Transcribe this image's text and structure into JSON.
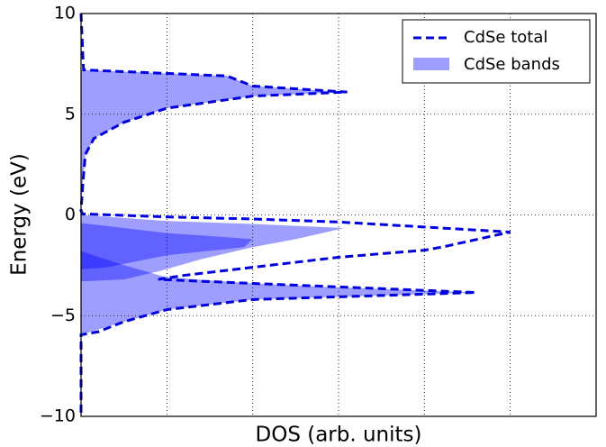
{
  "chart_data": {
    "type": "line",
    "xlabel": "DOS (arb. units)",
    "ylabel": "Energy (eV)",
    "xlim": [
      0,
      6
    ],
    "xticks": [
      0,
      1,
      2,
      3,
      4,
      5,
      6
    ],
    "ylim": [
      -10,
      10
    ],
    "yticks": [
      {
        "value": -10,
        "label": "−10"
      },
      {
        "value": -5,
        "label": "−5"
      },
      0,
      5,
      10
    ],
    "grid": true,
    "legend": "upper right",
    "series": [
      {
        "name": "CdSe total",
        "color": "#0000dd",
        "style": "dashed",
        "x": [
          0,
          0.02,
          0.03,
          1.7,
          2.0,
          3.1,
          2.0,
          1.0,
          0.5,
          0.15,
          0.05,
          0.02,
          0,
          0.02,
          1.0,
          2.0,
          3.0,
          4.0,
          5.0,
          4.2,
          4.0,
          3.0,
          2.0,
          1.2,
          0.9,
          2.0,
          4.6,
          3.5,
          2.0,
          1.0,
          0.5,
          0.2,
          0,
          0
        ],
        "y": [
          10,
          8,
          7.2,
          6.9,
          6.4,
          6.1,
          5.9,
          5.3,
          4.6,
          3.8,
          3.0,
          1.5,
          0.2,
          0.05,
          -0.1,
          -0.2,
          -0.35,
          -0.6,
          -0.85,
          -1.6,
          -1.75,
          -2.1,
          -2.6,
          -3.0,
          -3.2,
          -3.4,
          -3.85,
          -4.0,
          -4.2,
          -4.7,
          -5.3,
          -5.8,
          -5.95,
          -10
        ]
      }
    ],
    "bands": {
      "name": "CdSe bands",
      "color": "#0000ff",
      "opacity": 0.38,
      "polygons": [
        {
          "x": [
            0,
            0.03,
            1.7,
            2.0,
            3.1,
            2.0,
            1.0,
            0.5,
            0.15,
            0.05,
            0.02,
            0
          ],
          "y": [
            7.2,
            7.2,
            6.9,
            6.4,
            6.1,
            5.9,
            5.3,
            4.6,
            3.8,
            3.0,
            1.5,
            0.2
          ]
        },
        {
          "x": [
            0,
            1.0,
            2.0,
            3.07,
            2.5,
            2.0,
            1.4,
            0.9,
            0.5,
            0
          ],
          "y": [
            0,
            -0.3,
            -0.45,
            -0.65,
            -1.2,
            -1.6,
            -2.2,
            -2.8,
            -3.2,
            -3.3
          ]
        },
        {
          "x": [
            0,
            1.0,
            2.0,
            1.9,
            1.0,
            0.3,
            0
          ],
          "y": [
            -0.4,
            -0.9,
            -1.2,
            -1.6,
            -2.0,
            -2.6,
            -2.7
          ]
        },
        {
          "x": [
            0,
            0.5,
            1.0,
            2.0,
            3.0,
            4.6,
            3.5,
            2.0,
            1.0,
            0.5,
            0
          ],
          "y": [
            -1.8,
            -2.5,
            -3.1,
            -3.4,
            -3.6,
            -3.85,
            -4.0,
            -4.2,
            -4.7,
            -5.3,
            -5.95
          ]
        }
      ]
    }
  }
}
